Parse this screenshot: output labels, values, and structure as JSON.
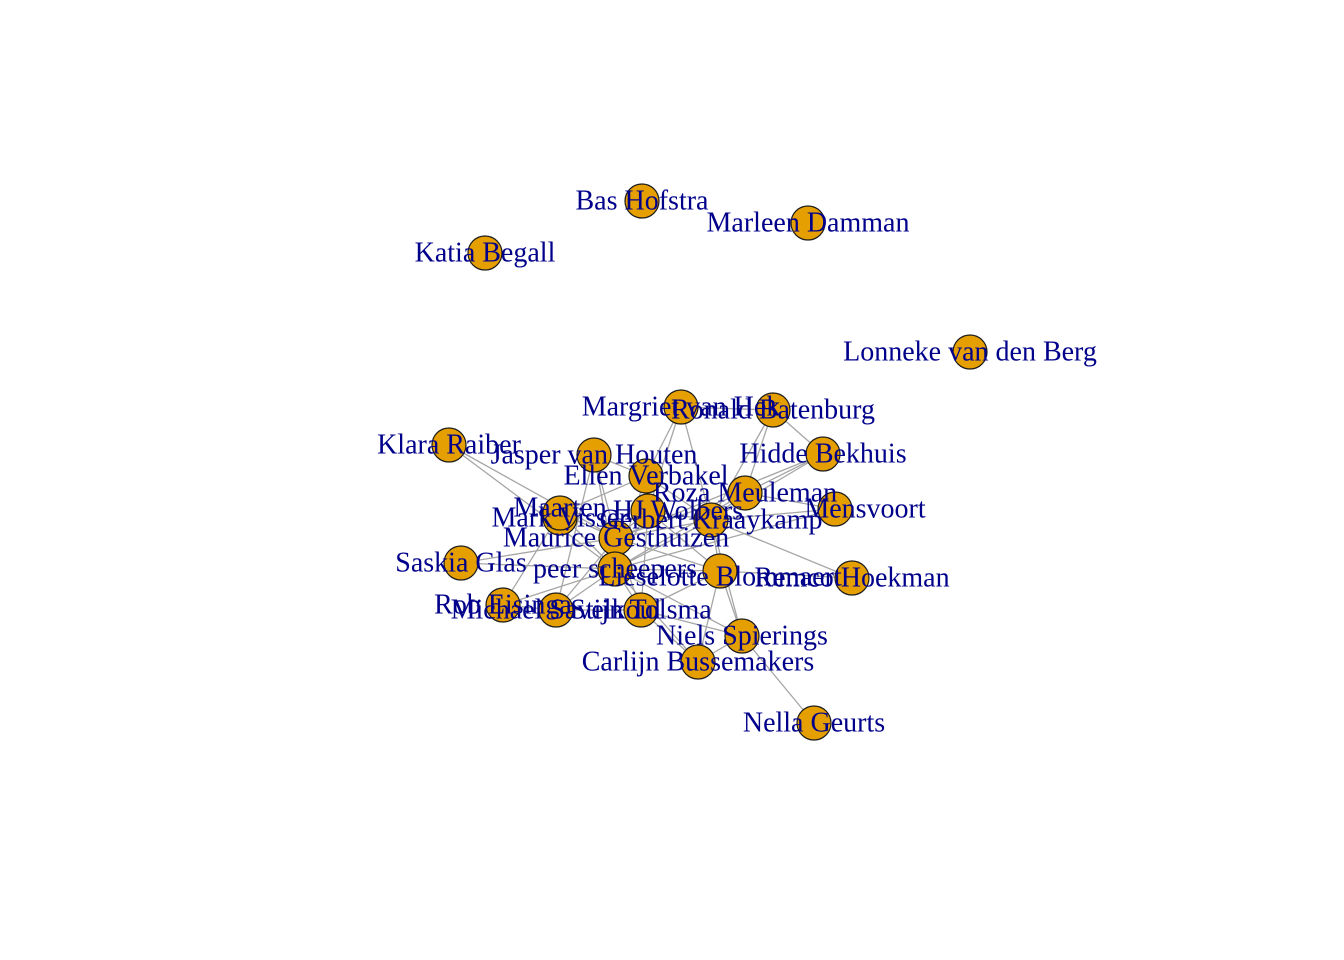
{
  "colors": {
    "node_fill": "#e69f00",
    "node_stroke": "#1a1a1a",
    "edge": "#a6a6a6",
    "label": "#00008b",
    "background": "#ffffff"
  },
  "network": {
    "nodes": [
      {
        "id": "bas",
        "label": "Bas Hofstra"
      },
      {
        "id": "marleen",
        "label": "Marleen Damman"
      },
      {
        "id": "katia",
        "label": "Katia Begall"
      },
      {
        "id": "lonneke",
        "label": "Lonneke van den Berg"
      },
      {
        "id": "margriet",
        "label": "Margriet van Hek"
      },
      {
        "id": "ronald",
        "label": "Ronald Batenburg"
      },
      {
        "id": "klara",
        "label": "Klara Raiber"
      },
      {
        "id": "jasper",
        "label": "Jasper van Houten"
      },
      {
        "id": "hidde",
        "label": "Hidde Bekhuis"
      },
      {
        "id": "ellen",
        "label": "Ellen Verbakel"
      },
      {
        "id": "roza",
        "label": "Roza Meuleman"
      },
      {
        "id": "hj",
        "label": "HJ Wolbers"
      },
      {
        "id": "gerbert",
        "label": "Gerbert Kraaykamp"
      },
      {
        "id": "mark",
        "label": "Mark Visser"
      },
      {
        "id": "maarten",
        "label": "Maarten"
      },
      {
        "id": "vanmensvoort",
        "label": "Mensvoort"
      },
      {
        "id": "maurice",
        "label": "Maurice Gesthuizen"
      },
      {
        "id": "saskia",
        "label": "Saskia Glas"
      },
      {
        "id": "peer",
        "label": "peer scheepers"
      },
      {
        "id": "lieselotte",
        "label": "Lieselotte Blommaert"
      },
      {
        "id": "remco",
        "label": "Remco Hoekman"
      },
      {
        "id": "rob",
        "label": "Rob Eisinga"
      },
      {
        "id": "michael",
        "label": "Michael Savelkoul"
      },
      {
        "id": "stijn",
        "label": "Stijn Tolsma"
      },
      {
        "id": "niels",
        "label": "Niels Spierings"
      },
      {
        "id": "carlijn",
        "label": "Carlijn Bussemakers"
      },
      {
        "id": "nella",
        "label": "Nella Geurts"
      }
    ],
    "edges": [
      [
        "margriet",
        "ronald"
      ],
      [
        "margriet",
        "ellen"
      ],
      [
        "margriet",
        "hj"
      ],
      [
        "margriet",
        "gerbert"
      ],
      [
        "ronald",
        "roza"
      ],
      [
        "ronald",
        "hidde"
      ],
      [
        "ronald",
        "gerbert"
      ],
      [
        "hidde",
        "roza"
      ],
      [
        "hidde",
        "gerbert"
      ],
      [
        "hidde",
        "maurice"
      ],
      [
        "klara",
        "maurice"
      ],
      [
        "klara",
        "peer"
      ],
      [
        "jasper",
        "ellen"
      ],
      [
        "jasper",
        "peer"
      ],
      [
        "jasper",
        "maurice"
      ],
      [
        "jasper",
        "michael"
      ],
      [
        "ellen",
        "hj"
      ],
      [
        "ellen",
        "maarten"
      ],
      [
        "ellen",
        "peer"
      ],
      [
        "ellen",
        "gerbert"
      ],
      [
        "roza",
        "gerbert"
      ],
      [
        "roza",
        "maurice"
      ],
      [
        "roza",
        "peer"
      ],
      [
        "roza",
        "vanmensvoort"
      ],
      [
        "hj",
        "gerbert"
      ],
      [
        "hj",
        "maurice"
      ],
      [
        "hj",
        "peer"
      ],
      [
        "hj",
        "stijn"
      ],
      [
        "hj",
        "lieselotte"
      ],
      [
        "gerbert",
        "maurice"
      ],
      [
        "gerbert",
        "peer"
      ],
      [
        "gerbert",
        "lieselotte"
      ],
      [
        "gerbert",
        "vanmensvoort"
      ],
      [
        "gerbert",
        "remco"
      ],
      [
        "gerbert",
        "niels"
      ],
      [
        "maarten",
        "maurice"
      ],
      [
        "maarten",
        "peer"
      ],
      [
        "maarten",
        "rob"
      ],
      [
        "maurice",
        "peer"
      ],
      [
        "maurice",
        "lieselotte"
      ],
      [
        "maurice",
        "michael"
      ],
      [
        "maurice",
        "stijn"
      ],
      [
        "maurice",
        "saskia"
      ],
      [
        "peer",
        "lieselotte"
      ],
      [
        "peer",
        "michael"
      ],
      [
        "peer",
        "stijn"
      ],
      [
        "peer",
        "rob"
      ],
      [
        "peer",
        "carlijn"
      ],
      [
        "peer",
        "niels"
      ],
      [
        "peer",
        "vanmensvoort"
      ],
      [
        "lieselotte",
        "remco"
      ],
      [
        "lieselotte",
        "niels"
      ],
      [
        "lieselotte",
        "carlijn"
      ],
      [
        "lieselotte",
        "stijn"
      ],
      [
        "michael",
        "stijn"
      ],
      [
        "michael",
        "rob"
      ],
      [
        "stijn",
        "carlijn"
      ],
      [
        "stijn",
        "niels"
      ],
      [
        "niels",
        "nella"
      ],
      [
        "niels",
        "carlijn"
      ],
      [
        "saskia",
        "peer"
      ]
    ]
  }
}
